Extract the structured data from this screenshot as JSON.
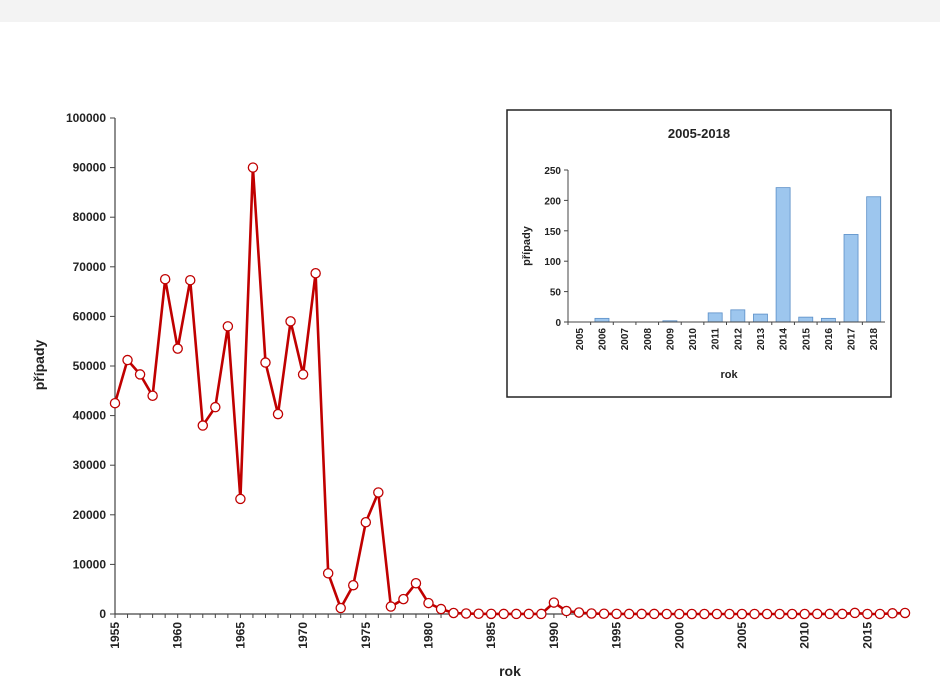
{
  "chart_data": [
    {
      "type": "line",
      "title": "",
      "xlabel": "rok",
      "ylabel": "případy",
      "ylim": [
        0,
        100000
      ],
      "yticks": [
        0,
        10000,
        20000,
        30000,
        40000,
        50000,
        60000,
        70000,
        80000,
        90000,
        100000
      ],
      "xticks": [
        1955,
        1960,
        1965,
        1970,
        1975,
        1980,
        1985,
        1990,
        1995,
        2000,
        2005,
        2010,
        2015
      ],
      "xlim": [
        1955,
        2018
      ],
      "grid": false,
      "colors": {
        "line": "#c00000",
        "marker_edge": "#c00000",
        "marker_fill": "#ffffff"
      },
      "x": [
        1955,
        1956,
        1957,
        1958,
        1959,
        1960,
        1961,
        1962,
        1963,
        1964,
        1965,
        1966,
        1967,
        1968,
        1969,
        1970,
        1971,
        1972,
        1973,
        1974,
        1975,
        1976,
        1977,
        1978,
        1979,
        1980,
        1981,
        1982,
        1983,
        1984,
        1985,
        1986,
        1987,
        1988,
        1989,
        1990,
        1991,
        1992,
        1993,
        1994,
        1995,
        1996,
        1997,
        1998,
        1999,
        2000,
        2001,
        2002,
        2003,
        2004,
        2005,
        2006,
        2007,
        2008,
        2009,
        2010,
        2011,
        2012,
        2013,
        2014,
        2015,
        2016,
        2017,
        2018
      ],
      "values": [
        42500,
        51200,
        48300,
        44000,
        67500,
        53500,
        67300,
        38000,
        41700,
        58000,
        23200,
        90000,
        50700,
        40300,
        59000,
        48300,
        68700,
        8200,
        1200,
        5800,
        18500,
        24500,
        1500,
        3000,
        6200,
        2200,
        1000,
        200,
        100,
        50,
        30,
        20,
        20,
        20,
        20,
        2300,
        600,
        300,
        100,
        50,
        30,
        20,
        20,
        20,
        0,
        0,
        0,
        0,
        0,
        0,
        0,
        6,
        0,
        0,
        2,
        0,
        15,
        20,
        13,
        221,
        8,
        6,
        144,
        206
      ]
    },
    {
      "type": "bar",
      "title": "2005-2018",
      "xlabel": "rok",
      "ylabel": "případy",
      "ylim": [
        0,
        250
      ],
      "yticks": [
        0,
        50,
        100,
        150,
        200,
        250
      ],
      "categories": [
        "2005",
        "2006",
        "2007",
        "2008",
        "2009",
        "2010",
        "2011",
        "2012",
        "2013",
        "2014",
        "2015",
        "2016",
        "2017",
        "2018"
      ],
      "values": [
        0,
        6,
        0,
        0,
        2,
        0,
        15,
        20,
        13,
        221,
        8,
        6,
        144,
        206
      ],
      "grid": false,
      "colors": {
        "bar_fill": "#9dc6ee",
        "bar_edge": "#5b8fc7"
      }
    }
  ]
}
